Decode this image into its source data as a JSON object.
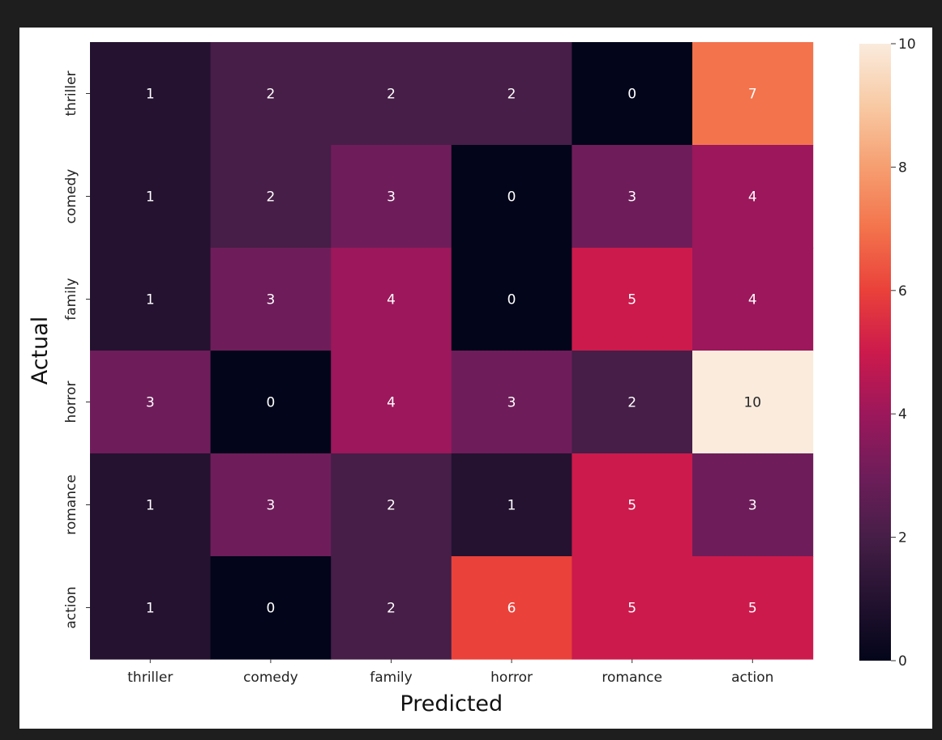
{
  "chart_data": {
    "type": "heatmap",
    "title": "",
    "xlabel": "Predicted",
    "ylabel": "Actual",
    "x_categories": [
      "thriller",
      "comedy",
      "family",
      "horror",
      "romance",
      "action"
    ],
    "y_categories": [
      "thriller",
      "comedy",
      "family",
      "horror",
      "romance",
      "action"
    ],
    "values": [
      [
        1,
        2,
        2,
        2,
        0,
        7
      ],
      [
        1,
        2,
        3,
        0,
        3,
        4
      ],
      [
        1,
        3,
        4,
        0,
        5,
        4
      ],
      [
        3,
        0,
        4,
        3,
        2,
        10
      ],
      [
        1,
        3,
        2,
        1,
        5,
        3
      ],
      [
        1,
        0,
        2,
        6,
        5,
        5
      ]
    ],
    "colorbar": {
      "range": [
        0,
        10
      ],
      "ticks": [
        0,
        2,
        4,
        6,
        8,
        10
      ],
      "colormap": "rocket",
      "position": "right"
    },
    "annotations": true
  }
}
